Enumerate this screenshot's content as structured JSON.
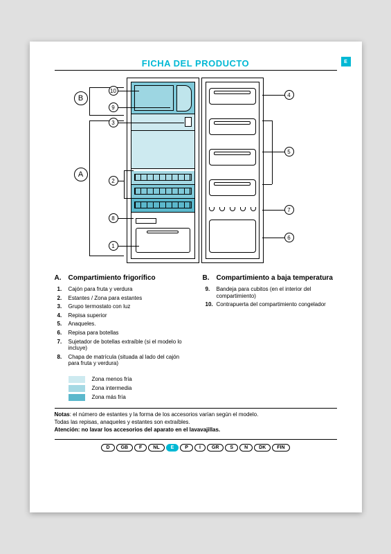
{
  "header": {
    "title": "FICHA DEL PRODUCTO",
    "lang_indicator": "E"
  },
  "diagram": {
    "big_labels": {
      "A": "A",
      "B": "B"
    },
    "callouts": [
      "1",
      "2",
      "3",
      "4",
      "5",
      "6",
      "7",
      "8",
      "9",
      "10"
    ],
    "zone_colors": {
      "less_cold": "#cdeaf0",
      "intermediate": "#a5d9e4",
      "coldest_1": "#7fc9d9",
      "coldest_2": "#5bb8cc"
    }
  },
  "sectionA": {
    "letter": "A.",
    "heading": "Compartimiento frigorífico",
    "items": [
      {
        "n": "1.",
        "t": "Cajón para fruta y verdura"
      },
      {
        "n": "2.",
        "t": "Estantes / Zona para estantes"
      },
      {
        "n": "3.",
        "t": "Grupo termostato con luz"
      },
      {
        "n": "4.",
        "t": "Repisa superior"
      },
      {
        "n": "5.",
        "t": "Anaqueles."
      },
      {
        "n": "6.",
        "t": "Repisa para botellas"
      },
      {
        "n": "7.",
        "t": "Sujetador de botellas extraíble (si el modelo lo incluye)"
      },
      {
        "n": "8.",
        "t": "Chapa de matrícula (situada al lado del cajón para fruta y verdura)"
      }
    ]
  },
  "sectionB": {
    "letter": "B.",
    "heading": "Compartimiento a baja temperatura",
    "items": [
      {
        "n": "9.",
        "t": "Bandeja para cubitos (en el interior del compartimiento)"
      },
      {
        "n": "10.",
        "t": "Contrapuerta del compartimiento congelador"
      }
    ]
  },
  "legend": [
    {
      "color": "#cdeaf0",
      "label": "Zona menos fría"
    },
    {
      "color": "#a5d9e4",
      "label": "Zona intermedia"
    },
    {
      "color": "#5bb8cc",
      "label": "Zona más fría"
    }
  ],
  "notes": {
    "line1_b": "Notas",
    "line1": ": el número de estantes y la forma de los accesorios varían según el modelo.",
    "line2": "Todas las repisas, anaqueles y estantes son extraíbles.",
    "line3_b": "Atención: no lavar los accesorios del aparato en el lavavajillas."
  },
  "languages": [
    "D",
    "GB",
    "F",
    "NL",
    "E",
    "P",
    "I",
    "GR",
    "S",
    "N",
    "DK",
    "FIN"
  ],
  "active_lang": "E"
}
